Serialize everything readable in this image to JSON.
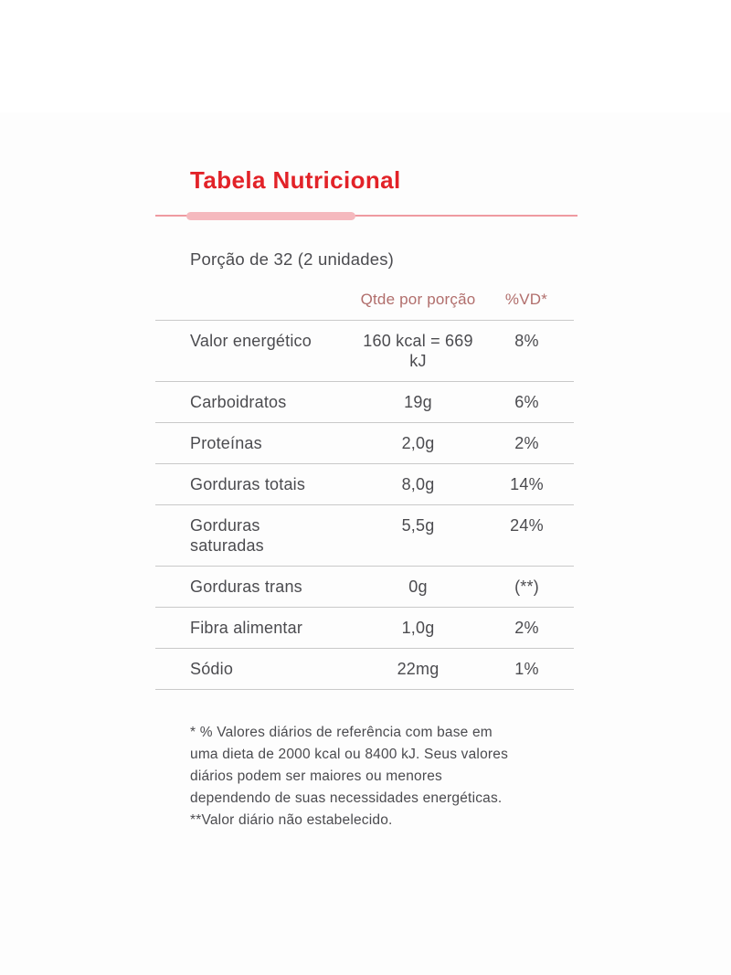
{
  "page": {
    "title": "Tabela Nutricional",
    "serving": "Porção de 32 (2 unidades)"
  },
  "colors": {
    "title_red": "#e22228",
    "column_header_rose": "#b16e6c",
    "body_text": "#4b4b4f",
    "divider_line_pink": "#ef9aa1",
    "divider_pill_pink": "#f5b9be",
    "row_separator_gray": "#c9c9c9"
  },
  "table": {
    "column_headers": {
      "label": "",
      "qty": "Qtde por porção",
      "dv": "%VD*"
    },
    "rows": [
      {
        "label": "Valor energético",
        "qty": "160 kcal = 669 kJ",
        "dv": "8%"
      },
      {
        "label": "Carboidratos",
        "qty": "19g",
        "dv": "6%"
      },
      {
        "label": "Proteínas",
        "qty": "2,0g",
        "dv": "2%"
      },
      {
        "label": "Gorduras totais",
        "qty": "8,0g",
        "dv": "14%"
      },
      {
        "label": "Gorduras saturadas",
        "qty": "5,5g",
        "dv": "24%"
      },
      {
        "label": "Gorduras trans",
        "qty": "0g",
        "dv": "(**)"
      },
      {
        "label": "Fibra alimentar",
        "qty": "1,0g",
        "dv": "2%"
      },
      {
        "label": "Sódio",
        "qty": "22mg",
        "dv": "1%"
      }
    ]
  },
  "footnotes": {
    "lines": [
      "* % Valores diários de referência com base em",
      "uma dieta de 2000 kcal ou 8400 kJ. Seus valores",
      "diários podem ser maiores ou menores",
      "dependendo de suas necessidades energéticas.",
      "**Valor diário não estabelecido."
    ]
  }
}
